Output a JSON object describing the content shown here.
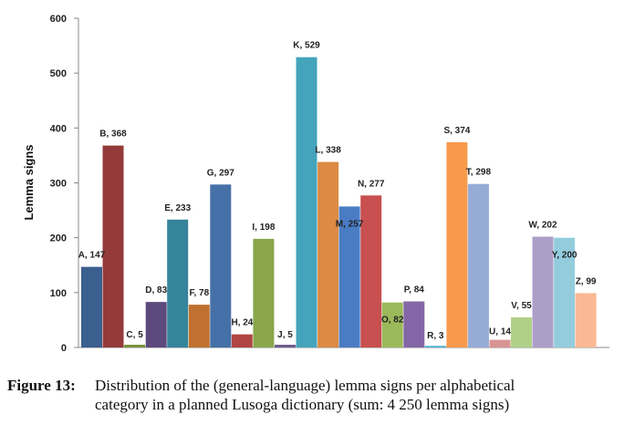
{
  "chart_data": {
    "type": "bar",
    "categories": [
      "A",
      "B",
      "C",
      "D",
      "E",
      "F",
      "G",
      "H",
      "I",
      "J",
      "K",
      "L",
      "M",
      "N",
      "O",
      "P",
      "R",
      "S",
      "T",
      "U",
      "V",
      "W",
      "Y",
      "Z"
    ],
    "values": [
      147,
      368,
      5,
      83,
      233,
      78,
      297,
      24,
      198,
      5,
      529,
      338,
      257,
      277,
      82,
      84,
      3,
      374,
      298,
      14,
      55,
      202,
      200,
      99
    ],
    "data_labels": [
      "A, 147",
      "B, 368",
      "C, 5",
      "D, 83",
      "E, 233",
      "F, 78",
      "G, 297",
      "H, 24",
      "I, 198",
      "J, 5",
      "K, 529",
      "L, 338",
      "M, 257",
      "N, 277",
      "O, 82",
      "P, 84",
      "R, 3",
      "S, 374",
      "T, 298",
      "U, 14",
      "V, 55",
      "W, 202",
      "Y, 200",
      "Z, 99"
    ],
    "colors": [
      "#3b5f8f",
      "#943a38",
      "#77923c",
      "#5d4a7c",
      "#34849a",
      "#c0712f",
      "#4670a8",
      "#b04543",
      "#89a64a",
      "#6e5b8e",
      "#44a4bc",
      "#dc8a44",
      "#4a7cc4",
      "#c85050",
      "#9aba5a",
      "#8367a6",
      "#4eb6d0",
      "#f79a4c",
      "#95acd6",
      "#d99594",
      "#b0d088",
      "#ad9ec8",
      "#93cddd",
      "#fab994"
    ],
    "ylabel": "Lemma signs",
    "ylim": [
      0,
      600
    ],
    "yticks": [
      0,
      100,
      200,
      300,
      400,
      500,
      600
    ],
    "grid": false,
    "legend": "none"
  },
  "caption": {
    "label": "Figure 13:",
    "line1": "Distribution of the (general-language) lemma signs per alphabetical",
    "line2": "category in a planned Lusoga dictionary (sum: 4 250 lemma signs)"
  }
}
